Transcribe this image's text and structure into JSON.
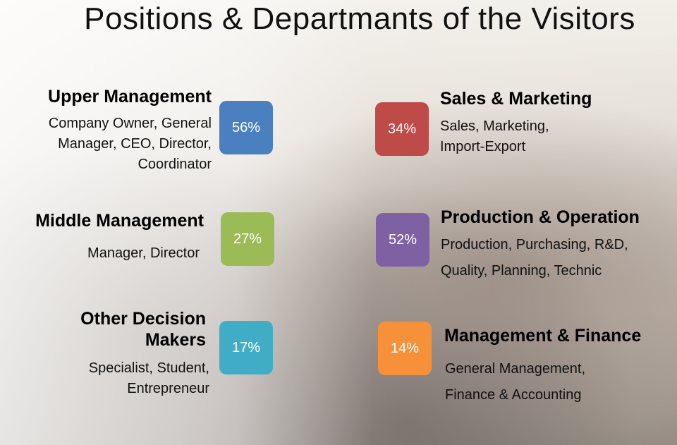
{
  "title": "Positions & Departmants of the Visitors",
  "left": [
    {
      "heading": "Upper Management",
      "desc_lines": [
        "Company Owner, General",
        "Manager, CEO, Director,",
        "Coordinator"
      ],
      "percent": "56%",
      "color": "#4a7fc0"
    },
    {
      "heading": "Middle Management",
      "desc_lines": [
        "Manager, Director"
      ],
      "percent": "27%",
      "color": "#9bbb56"
    },
    {
      "heading_lines": [
        "Other Decision",
        "Makers"
      ],
      "desc_lines": [
        "Specialist, Student,",
        "Entrepreneur"
      ],
      "percent": "17%",
      "color": "#41acc6"
    }
  ],
  "right": [
    {
      "heading": "Sales & Marketing",
      "desc_lines": [
        "Sales, Marketing,",
        "Import-Export"
      ],
      "percent": "34%",
      "color": "#be4b48"
    },
    {
      "heading": "Production & Operation",
      "desc_lines": [
        "Production, Purchasing, R&D,",
        "Quality, Planning, Technic"
      ],
      "percent": "52%",
      "color": "#7e61a3"
    },
    {
      "heading": "Management & Finance",
      "desc_lines": [
        "General Management,",
        "Finance & Accounting"
      ],
      "percent": "14%",
      "color": "#f6913a"
    }
  ]
}
